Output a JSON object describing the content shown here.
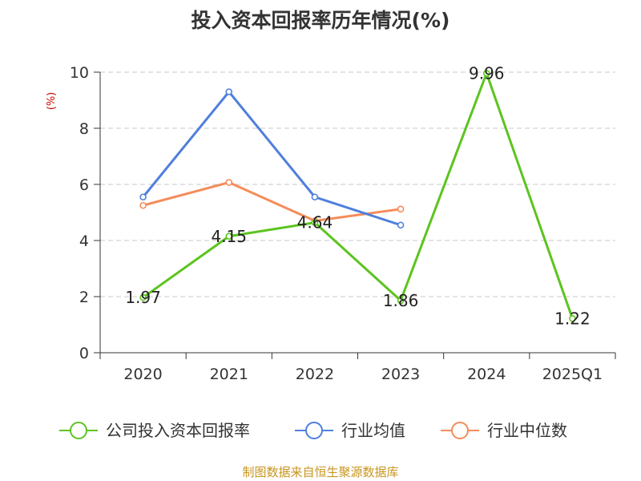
{
  "chart_data": {
    "type": "line",
    "title": "投入资本回报率历年情况(%)",
    "ylabel": "(%)",
    "categories": [
      "2020",
      "2021",
      "2022",
      "2023",
      "2024",
      "2025Q1"
    ],
    "ylim": [
      0,
      10
    ],
    "yticks": [
      0,
      2,
      4,
      6,
      8,
      10
    ],
    "grid": true,
    "legend_position": "bottom",
    "series": [
      {
        "name": "公司投入资本回报率",
        "color": "#5cc41e",
        "values": [
          1.97,
          4.15,
          4.64,
          1.86,
          9.96,
          1.22
        ],
        "data_labels": [
          "1.97",
          "4.15",
          "4.64",
          "1.86",
          "9.96",
          "1.22"
        ]
      },
      {
        "name": "行业均值",
        "color": "#4f7fdc",
        "values": [
          5.55,
          9.3,
          5.55,
          4.55,
          null,
          null
        ]
      },
      {
        "name": "行业中位数",
        "color": "#f58c5a",
        "values": [
          5.25,
          6.07,
          4.7,
          5.12,
          null,
          null
        ]
      }
    ]
  },
  "source": "制图数据来自恒生聚源数据库"
}
